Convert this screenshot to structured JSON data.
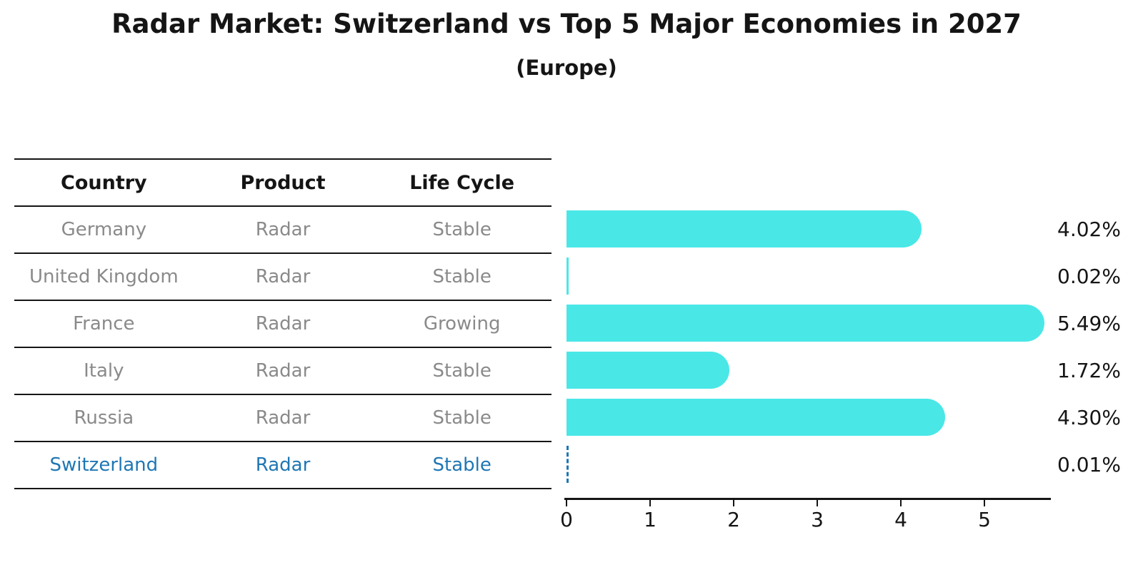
{
  "title": "Radar Market: Switzerland vs Top 5 Major Economies in 2027",
  "subtitle": "(Europe)",
  "table": {
    "headers": [
      "Country",
      "Product",
      "Life Cycle"
    ],
    "rows": [
      {
        "country": "Germany",
        "product": "Radar",
        "life_cycle": "Stable",
        "highlight": false
      },
      {
        "country": "United Kingdom",
        "product": "Radar",
        "life_cycle": "Stable",
        "highlight": false
      },
      {
        "country": "France",
        "product": "Radar",
        "life_cycle": "Growing",
        "highlight": false
      },
      {
        "country": "Italy",
        "product": "Radar",
        "life_cycle": "Stable",
        "highlight": false
      },
      {
        "country": "Russia",
        "product": "Radar",
        "life_cycle": "Stable",
        "highlight": false
      },
      {
        "country": "Switzerland",
        "product": "Radar",
        "life_cycle": "Stable",
        "highlight": true
      }
    ]
  },
  "chart_data": {
    "type": "bar",
    "orientation": "horizontal",
    "categories": [
      "Germany",
      "United Kingdom",
      "France",
      "Italy",
      "Russia",
      "Switzerland"
    ],
    "values": [
      4.02,
      0.02,
      5.49,
      1.72,
      4.3,
      0.01
    ],
    "value_labels": [
      "4.02%",
      "0.02%",
      "5.49%",
      "1.72%",
      "4.30%",
      "0.01%"
    ],
    "x_tick_labels": [
      "0",
      "1",
      "2",
      "3",
      "4",
      "5"
    ],
    "x_ticks": [
      0,
      1,
      2,
      3,
      4,
      5
    ],
    "xlim": [
      0,
      5.8
    ],
    "grid": false,
    "legend": false,
    "bar_color": "#4AE7E7",
    "highlight_color": "#1f77b4",
    "highlight_category": "Switzerland"
  },
  "colors": {
    "bar": "#4AE7E7",
    "highlight": "#1f77b4",
    "table_text": "#8a8a8a",
    "axis": "#151515"
  }
}
